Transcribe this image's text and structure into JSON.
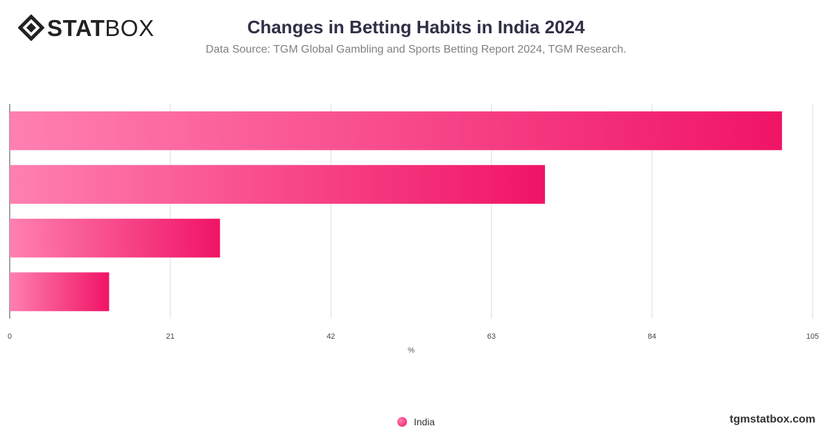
{
  "brand": {
    "logo_bold": "STAT",
    "logo_thin": "BOX",
    "website": "tgmstatbox.com"
  },
  "header": {
    "title": "Changes in Betting Habits in India 2024",
    "subtitle": "Data Source: TGM Global Gambling and Sports Betting Report 2024, TGM Research."
  },
  "chart_data": {
    "type": "bar",
    "orientation": "horizontal",
    "categories": [
      "",
      "",
      "",
      ""
    ],
    "series": [
      {
        "name": "India",
        "values": [
          101,
          70,
          27.5,
          13
        ]
      }
    ],
    "xlabel": "%",
    "xlim": [
      0,
      105
    ],
    "xticks": [
      0,
      21,
      42,
      63,
      84,
      105
    ],
    "grid": true,
    "legend_placement": "bottom-center",
    "colors": {
      "bar_start": "#ff80b1",
      "bar_end": "#f01466",
      "grid": "#dcdcdc",
      "axis": "#444444"
    }
  }
}
